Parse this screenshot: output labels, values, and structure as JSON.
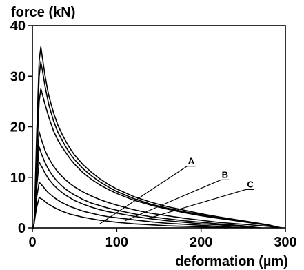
{
  "chart_data": {
    "type": "line",
    "title": "",
    "xlabel": "deformation (µm)",
    "ylabel": "force (kN)",
    "xlim": [
      0,
      300
    ],
    "ylim": [
      0,
      40
    ],
    "grid": false,
    "legend": "none",
    "x_ticks": [
      "0",
      "100",
      "200",
      "300"
    ],
    "y_ticks": [
      "0",
      "10",
      "20",
      "30",
      "40"
    ],
    "colors": {
      "series": "#000000",
      "frame": "#000000",
      "background": "#ffffff"
    },
    "annotations": [
      {
        "text": "A",
        "x": 190,
        "y": 12.2,
        "target_x": 80,
        "target_y": 0.8
      },
      {
        "text": "B",
        "x": 230,
        "y": 9.5,
        "target_x": 110,
        "target_y": 1.4
      },
      {
        "text": "C",
        "x": 260,
        "y": 7.6,
        "target_x": 140,
        "target_y": 2.0
      }
    ],
    "series": [
      {
        "x": [
          1,
          2,
          3,
          5,
          8,
          10,
          12,
          15,
          18,
          20,
          25,
          30,
          35,
          40,
          45,
          50,
          60,
          70,
          80,
          90,
          100,
          120,
          140,
          160,
          180,
          200,
          220,
          250,
          280,
          295
        ],
        "y": [
          0,
          1,
          6,
          18,
          33,
          35.8,
          33.5,
          30.1,
          27.3,
          25.8,
          22.8,
          20.4,
          18.6,
          17.0,
          15.6,
          14.4,
          12.5,
          11.0,
          9.7,
          8.6,
          7.7,
          6.2,
          5.1,
          4.2,
          3.5,
          2.8,
          2.2,
          1.4,
          0.6,
          0
        ]
      },
      {
        "x": [
          1,
          2,
          3,
          5,
          8,
          10,
          12,
          15,
          18,
          20,
          25,
          30,
          35,
          40,
          45,
          50,
          60,
          70,
          80,
          90,
          100,
          120,
          140,
          160,
          180,
          200,
          220,
          250,
          280,
          295
        ],
        "y": [
          0,
          1,
          5,
          16,
          30,
          32.8,
          31.0,
          28.0,
          25.5,
          24.0,
          21.2,
          19.0,
          17.4,
          15.9,
          14.6,
          13.5,
          11.7,
          10.3,
          9.1,
          8.1,
          7.2,
          5.8,
          4.7,
          3.9,
          3.2,
          2.6,
          2.0,
          1.3,
          0.5,
          0
        ]
      },
      {
        "x": [
          1,
          2,
          3,
          5,
          8,
          10,
          12,
          15,
          18,
          20,
          25,
          30,
          35,
          40,
          45,
          50,
          60,
          70,
          80,
          90,
          100,
          120,
          140,
          160,
          180,
          200,
          220,
          250,
          280,
          295
        ],
        "y": [
          0,
          1,
          4,
          14,
          25,
          27.5,
          26.3,
          24.4,
          22.7,
          21.6,
          19.2,
          17.4,
          16.0,
          14.8,
          13.6,
          12.6,
          10.9,
          9.6,
          8.5,
          7.6,
          6.8,
          5.5,
          4.5,
          3.7,
          3.0,
          2.4,
          1.9,
          1.2,
          0.5,
          0
        ]
      },
      {
        "x": [
          1,
          2,
          3,
          5,
          8,
          10,
          12,
          15,
          18,
          20,
          25,
          30,
          35,
          40,
          45,
          50,
          60,
          70,
          80,
          90,
          100,
          120,
          140,
          160,
          180,
          200,
          220,
          250,
          280,
          290
        ],
        "y": [
          0,
          1,
          4,
          12,
          19,
          17.8,
          16.8,
          15.3,
          14.2,
          13.6,
          12.2,
          11.1,
          10.2,
          9.4,
          8.7,
          8.1,
          7.1,
          6.3,
          5.6,
          5.0,
          4.5,
          3.6,
          2.9,
          2.4,
          1.9,
          1.5,
          1.1,
          0.7,
          0.3,
          0
        ]
      },
      {
        "x": [
          1,
          2,
          3,
          5,
          8,
          10,
          12,
          15,
          18,
          20,
          25,
          30,
          35,
          40,
          45,
          50,
          60,
          70,
          80,
          90,
          100,
          120,
          140,
          160,
          180,
          200,
          220,
          250,
          270
        ],
        "y": [
          0,
          1,
          3,
          10,
          16,
          15.0,
          14.1,
          12.9,
          11.9,
          11.3,
          10.1,
          9.1,
          8.3,
          7.6,
          7.0,
          6.5,
          5.6,
          4.9,
          4.4,
          3.9,
          3.5,
          2.8,
          2.2,
          1.8,
          1.4,
          1.1,
          0.8,
          0.4,
          0
        ]
      },
      {
        "x": [
          1,
          2,
          3,
          5,
          8,
          10,
          12,
          15,
          18,
          20,
          25,
          30,
          35,
          40,
          45,
          50,
          60,
          70,
          80,
          90,
          100,
          120,
          140,
          160,
          180,
          200,
          220,
          245,
          260
        ],
        "y": [
          0,
          1,
          3,
          8,
          13,
          12.4,
          11.8,
          10.8,
          10.0,
          9.5,
          8.5,
          7.7,
          7.0,
          6.4,
          5.9,
          5.4,
          4.7,
          4.1,
          3.6,
          3.2,
          2.9,
          2.3,
          1.8,
          1.4,
          1.1,
          0.8,
          0.6,
          0.3,
          0
        ]
      },
      {
        "x": [
          1,
          2,
          3,
          5,
          8,
          10,
          12,
          15,
          18,
          20,
          25,
          30,
          35,
          40,
          45,
          50,
          60,
          70,
          80,
          90,
          100,
          120,
          140,
          160,
          180,
          200,
          220,
          240,
          250
        ],
        "y": [
          0,
          1,
          2,
          6,
          9,
          8.7,
          8.3,
          7.7,
          7.1,
          6.8,
          6.1,
          5.5,
          5.0,
          4.6,
          4.2,
          3.9,
          3.3,
          2.9,
          2.5,
          2.2,
          2.0,
          1.6,
          1.2,
          0.9,
          0.7,
          0.5,
          0.3,
          0.1,
          0
        ]
      },
      {
        "x": [
          1,
          2,
          3,
          5,
          8,
          10,
          12,
          15,
          18,
          20,
          25,
          30,
          35,
          40,
          45,
          50,
          60,
          70,
          80,
          90,
          100,
          120,
          140,
          160,
          180,
          200,
          220,
          230
        ],
        "y": [
          0,
          1,
          2,
          4,
          6,
          5.8,
          5.6,
          5.2,
          4.8,
          4.6,
          4.1,
          3.7,
          3.3,
          3.0,
          2.7,
          2.5,
          2.1,
          1.8,
          1.5,
          1.3,
          1.1,
          0.8,
          0.6,
          0.4,
          0.3,
          0.2,
          0.1,
          0
        ]
      }
    ]
  }
}
